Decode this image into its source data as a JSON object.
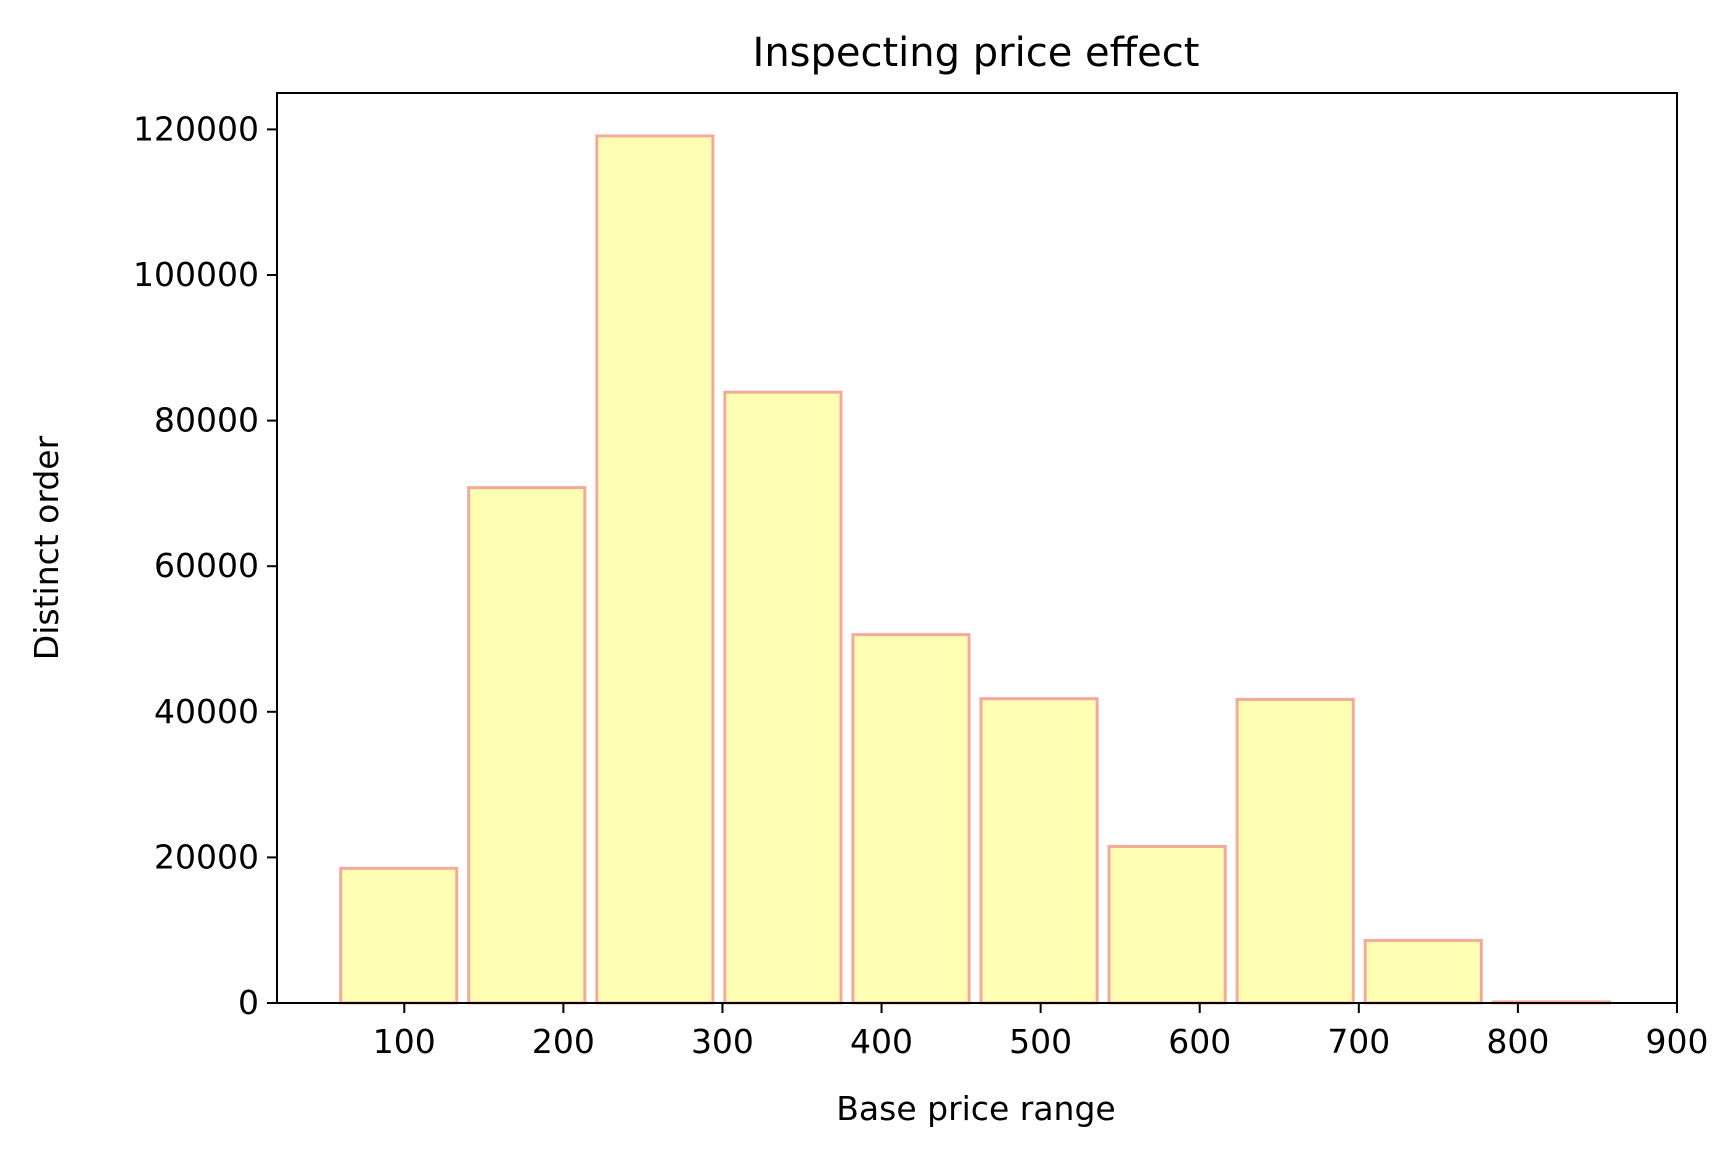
{
  "chart_data": {
    "type": "bar",
    "title": "Inspecting price effect",
    "xlabel": "Base price range",
    "ylabel": "Distinct order",
    "x": [
      96.5,
      177,
      257.5,
      338,
      418.5,
      499,
      579.5,
      660,
      740.5,
      821
    ],
    "bar_width": 73,
    "values": [
      18500,
      70800,
      119100,
      83900,
      50600,
      41800,
      21500,
      41700,
      8600,
      150
    ],
    "xlim": [
      20,
      900
    ],
    "ylim": [
      0,
      125000
    ],
    "xticks": [
      100,
      200,
      300,
      400,
      500,
      600,
      700,
      800,
      900
    ],
    "yticks": [
      0,
      20000,
      40000,
      60000,
      80000,
      100000,
      120000
    ],
    "grid": false,
    "colors": {
      "bar_fill": "#ffffb3",
      "bar_edge": "#f4aa9a"
    }
  }
}
